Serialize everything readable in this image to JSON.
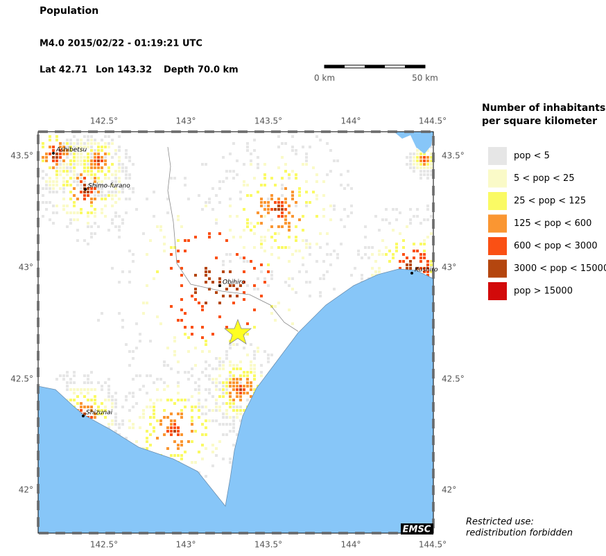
{
  "header": {
    "title": "Population",
    "event": "M4.0  2015/02/22 - 01:19:21 UTC",
    "lat": "Lat 42.71",
    "lon": "Lon 143.32",
    "depth": "Depth  70.0 km"
  },
  "scale": {
    "start": "0 km",
    "end": "50 km"
  },
  "map": {
    "lon_ticks": [
      "142.5°",
      "143°",
      "143.5°",
      "144°",
      "144.5°"
    ],
    "lat_ticks": [
      "43.5°",
      "43°",
      "42.5°",
      "42°"
    ],
    "cities": [
      "Ashibetsu",
      "Shimo-furano",
      "Obihiro",
      "Shizunai",
      "Kushiro"
    ],
    "logo": "EMSC"
  },
  "legend": {
    "title": [
      "Number of inhabitants",
      "per square kilometer"
    ],
    "items": [
      {
        "label": "pop < 5",
        "color": "#e6e6e6"
      },
      {
        "label": "5 < pop < 25",
        "color": "#fafac8"
      },
      {
        "label": "25 < pop < 125",
        "color": "#fafa64"
      },
      {
        "label": "125 < pop < 600",
        "color": "#fa9632"
      },
      {
        "label": "600 < pop < 3000",
        "color": "#fa5014"
      },
      {
        "label": "3000 < pop < 15000",
        "color": "#b4460f"
      },
      {
        "label": "pop > 15000",
        "color": "#d20a0a"
      }
    ]
  },
  "note": [
    "Restricted use:",
    "redistribution forbidden"
  ]
}
